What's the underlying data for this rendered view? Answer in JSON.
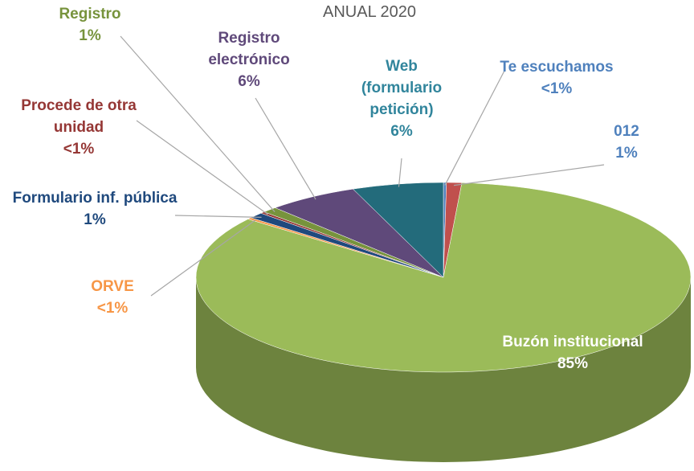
{
  "chart_data": {
    "type": "pie",
    "title": "ANUAL 2020",
    "categories": [
      "Te escuchamos",
      "012",
      "Buzón institucional",
      "ORVE",
      "Formulario inf. pública",
      "Procede de otra unidad",
      "Registro",
      "Registro electrónico",
      "Web (formulario petición)"
    ],
    "values": [
      0.2,
      1,
      85,
      0.3,
      1,
      0.3,
      1,
      6,
      6
    ],
    "value_labels": [
      "<1%",
      "1%",
      "85%",
      "<1%",
      "1%",
      "<1%",
      "1%",
      "6%",
      "6%"
    ],
    "colors": [
      "#4f81bd",
      "#c0504d",
      "#9bbb59",
      "#f79646",
      "#1f497d",
      "#953735",
      "#77933c",
      "#5f497a",
      "#236b7b"
    ],
    "label_colors": [
      "#4f81bd",
      "#4f81bd",
      "#ffffff",
      "#f79646",
      "#1f497d",
      "#953735",
      "#77933c",
      "#5f497a",
      "#31859c"
    ]
  }
}
